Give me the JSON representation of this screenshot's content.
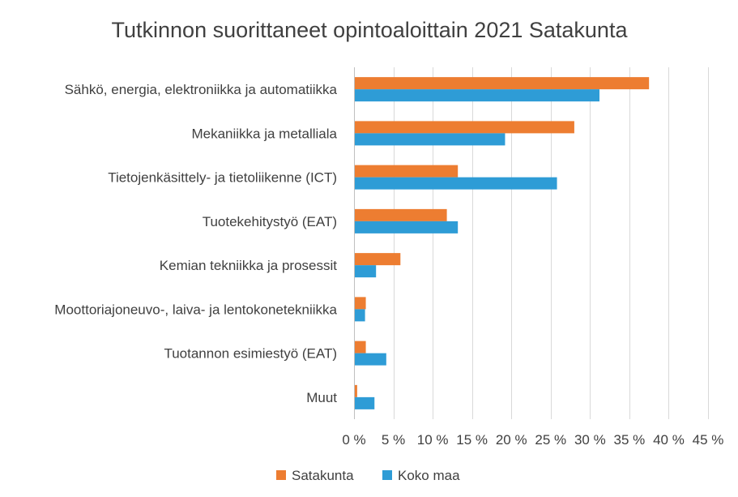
{
  "chart_data": {
    "type": "bar",
    "orientation": "horizontal",
    "title": "Tutkinnon suorittaneet opintoaloittain 2021 Satakunta",
    "categories": [
      "Sähkö, energia, elektroniikka ja automatiikka",
      "Mekaniikka ja metalliala",
      "Tietojenkäsittely- ja tietoliikenne (ICT)",
      "Tuotekehitystyö (EAT)",
      "Kemian tekniikka ja prosessit",
      "Moottoriajoneuvo-, laiva- ja lentokonetekniikka",
      "Tuotannon esimiestyö (EAT)",
      "Muut"
    ],
    "series": [
      {
        "name": "Satakunta",
        "color": "#ED7D31",
        "values": [
          37.5,
          28.0,
          13.2,
          11.8,
          5.9,
          1.5,
          1.5,
          0.4
        ]
      },
      {
        "name": "Koko maa",
        "color": "#2E9CD6",
        "values": [
          31.2,
          19.2,
          25.8,
          13.2,
          2.8,
          1.4,
          4.1,
          2.6
        ]
      }
    ],
    "xlim": [
      0,
      45
    ],
    "xticks": [
      0,
      5,
      10,
      15,
      20,
      25,
      30,
      35,
      40,
      45
    ],
    "xtick_labels": [
      "0 %",
      "5 %",
      "10 %",
      "15 %",
      "20 %",
      "25 %",
      "30 %",
      "35 %",
      "40 %",
      "45 %"
    ],
    "xlabel": "",
    "ylabel": "",
    "grid": true,
    "legend_position": "bottom"
  }
}
